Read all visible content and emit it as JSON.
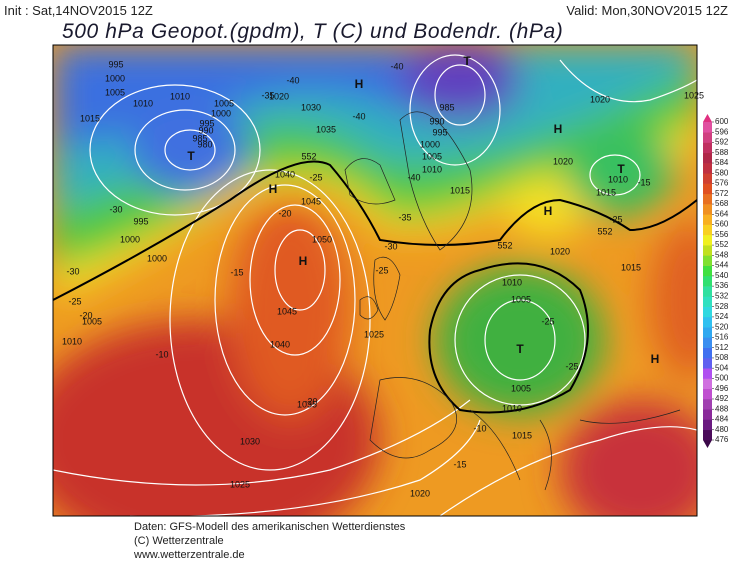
{
  "header": {
    "init": "Init : Sat,14NOV2015 12Z",
    "valid": "Valid: Mon,30NOV2015 12Z",
    "title": "500 hPa Geopot.(gpdm), T (C) und Bodendr. (hPa)"
  },
  "colorbar": {
    "ticks": [
      476,
      480,
      484,
      488,
      492,
      496,
      500,
      504,
      508,
      512,
      516,
      520,
      524,
      528,
      532,
      536,
      540,
      544,
      548,
      552,
      556,
      560,
      564,
      568,
      572,
      576,
      580,
      584,
      588,
      592,
      596,
      600
    ]
  },
  "map": {
    "labels": [
      "H",
      "H",
      "H",
      "H",
      "H",
      "H",
      "T",
      "T",
      "T",
      "T",
      "995",
      "1000",
      "1005",
      "1010",
      "1015",
      "1010",
      "1005",
      "1000",
      "995",
      "990",
      "985",
      "980",
      "1020",
      "1030",
      "1035",
      "1040",
      "1045",
      "1050",
      "1045",
      "1040",
      "1035",
      "1030",
      "1025",
      "995",
      "1000",
      "1000",
      "1005",
      "1010",
      "1025",
      "985",
      "990",
      "995",
      "1000",
      "1005",
      "1010",
      "1015",
      "1020",
      "1025",
      "1020",
      "1010",
      "1015",
      "1020",
      "1015",
      "1010",
      "1005",
      "1005",
      "1010",
      "1015",
      "1020",
      "-40",
      "-35",
      "-40",
      "-40",
      "-40",
      "-25",
      "-20",
      "-35",
      "-30",
      "-25",
      "-30",
      "-25",
      "-20",
      "-10",
      "-15",
      "-20",
      "-25",
      "-15",
      "-30",
      "-10",
      "-15",
      "-25",
      "-25",
      "552",
      "552",
      "552"
    ]
  },
  "footer": {
    "source": "Daten: GFS-Modell des amerikanischen Wetterdienstes",
    "copyright": "(C) Wetterzentrale",
    "url": "www.wetterzentrale.de"
  }
}
